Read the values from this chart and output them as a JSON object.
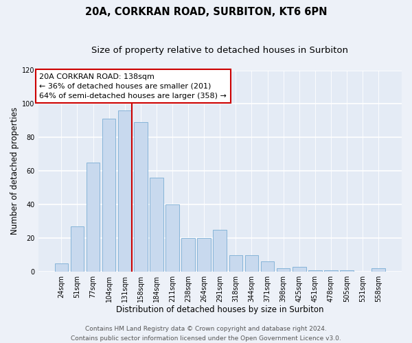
{
  "title": "20A, CORKRAN ROAD, SURBITON, KT6 6PN",
  "subtitle": "Size of property relative to detached houses in Surbiton",
  "xlabel": "Distribution of detached houses by size in Surbiton",
  "ylabel": "Number of detached properties",
  "bar_labels": [
    "24sqm",
    "51sqm",
    "77sqm",
    "104sqm",
    "131sqm",
    "158sqm",
    "184sqm",
    "211sqm",
    "238sqm",
    "264sqm",
    "291sqm",
    "318sqm",
    "344sqm",
    "371sqm",
    "398sqm",
    "425sqm",
    "451sqm",
    "478sqm",
    "505sqm",
    "531sqm",
    "558sqm"
  ],
  "bar_values": [
    5,
    27,
    65,
    91,
    96,
    89,
    56,
    40,
    20,
    20,
    25,
    10,
    10,
    6,
    2,
    3,
    1,
    1,
    1,
    0,
    2
  ],
  "bar_color": "#c8d9ee",
  "bar_edgecolor": "#7aadd4",
  "ylim": [
    0,
    120
  ],
  "yticks": [
    0,
    20,
    40,
    60,
    80,
    100,
    120
  ],
  "vline_color": "#cc0000",
  "annotation_title": "20A CORKRAN ROAD: 138sqm",
  "annotation_line1": "← 36% of detached houses are smaller (201)",
  "annotation_line2": "64% of semi-detached houses are larger (358) →",
  "annotation_box_color": "#ffffff",
  "annotation_box_edgecolor": "#cc0000",
  "footer_line1": "Contains HM Land Registry data © Crown copyright and database right 2024.",
  "footer_line2": "Contains public sector information licensed under the Open Government Licence v3.0.",
  "bg_color": "#edf1f8",
  "plot_bg_color": "#e4ebf5",
  "grid_color": "#ffffff",
  "title_fontsize": 10.5,
  "subtitle_fontsize": 9.5,
  "xlabel_fontsize": 8.5,
  "ylabel_fontsize": 8.5,
  "tick_fontsize": 7,
  "annotation_fontsize": 8,
  "footer_fontsize": 6.5
}
